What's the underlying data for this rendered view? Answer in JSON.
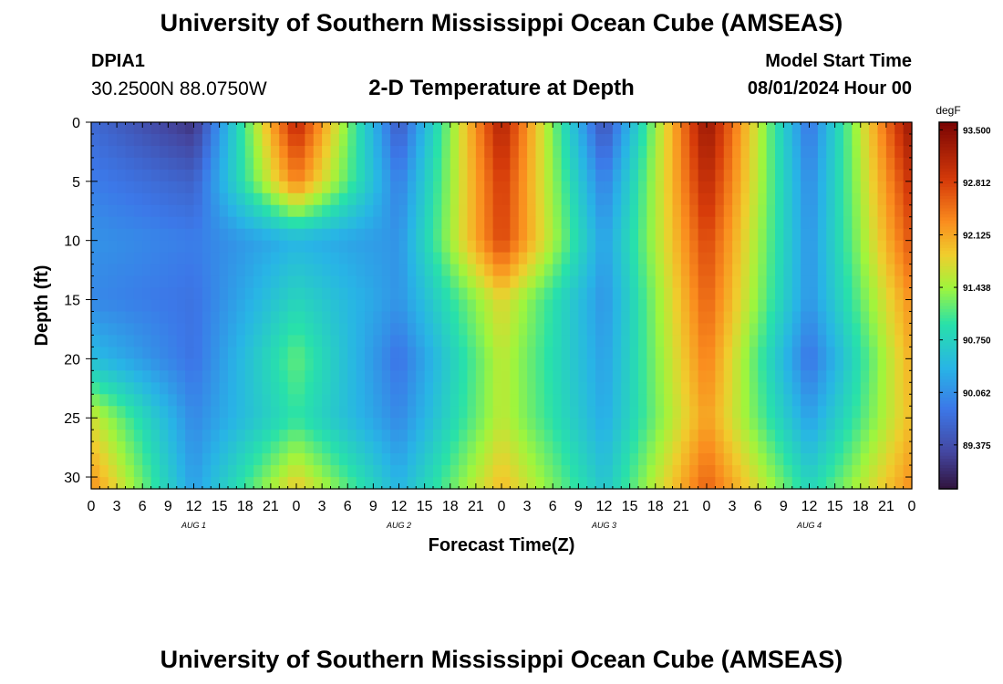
{
  "header": {
    "title": "University of Southern Mississippi Ocean Cube (AMSEAS)",
    "station_id": "DPIA1",
    "coords": "30.2500N  88.0750W",
    "subtitle": "2-D Temperature at Depth",
    "start_label": "Model Start Time",
    "start_value": "08/01/2024 Hour 00"
  },
  "footer": {
    "title": "University of Southern Mississippi Ocean Cube (AMSEAS)"
  },
  "chart_data": {
    "type": "heatmap",
    "title": "2-D Temperature at Depth",
    "xlabel": "Forecast Time(Z)",
    "ylabel": "Depth (ft)",
    "x_range_hours": [
      0,
      96
    ],
    "ylim": [
      0,
      31
    ],
    "x_tick_hours": [
      0,
      3,
      6,
      9,
      12,
      15,
      18,
      21,
      24,
      27,
      30,
      33,
      36,
      39,
      42,
      45,
      48,
      51,
      54,
      57,
      60,
      63,
      66,
      69,
      72,
      75,
      78,
      81,
      84,
      87,
      90,
      93,
      96
    ],
    "x_tick_labels": [
      "0",
      "3",
      "6",
      "9",
      "12",
      "15",
      "18",
      "21",
      "0",
      "3",
      "6",
      "9",
      "12",
      "15",
      "18",
      "21",
      "0",
      "3",
      "6",
      "9",
      "12",
      "15",
      "18",
      "21",
      "0",
      "3",
      "6",
      "9",
      "12",
      "15",
      "18",
      "21",
      "0"
    ],
    "y_ticks": [
      0,
      5,
      10,
      15,
      20,
      25,
      30
    ],
    "day_labels": [
      {
        "hour": 12,
        "text": "AUG 1"
      },
      {
        "hour": 36,
        "text": "AUG 2"
      },
      {
        "hour": 60,
        "text": "AUG 3"
      },
      {
        "hour": 84,
        "text": "AUG 4"
      }
    ],
    "colorbar": {
      "unit": "degF",
      "min": 88.8,
      "max": 93.6,
      "tick_values": [
        93.5,
        92.812,
        92.125,
        91.438,
        90.75,
        90.062,
        89.375
      ],
      "tick_labels": [
        "93.500",
        "92.812",
        "92.125",
        "91.438",
        "90.750",
        "90.062",
        "89.375"
      ]
    },
    "grid": {
      "time_hours": [
        0,
        12,
        24,
        36,
        48,
        60,
        72,
        84,
        96
      ],
      "depths_ft": [
        0,
        5,
        10,
        15,
        20,
        25,
        31
      ],
      "values_degF": [
        [
          89.7,
          89.1,
          93.1,
          89.5,
          93.2,
          89.4,
          93.4,
          89.8,
          93.4
        ],
        [
          89.9,
          89.6,
          92.4,
          89.9,
          92.9,
          89.9,
          93.1,
          90.0,
          93.0
        ],
        [
          90.1,
          89.9,
          90.4,
          90.1,
          92.8,
          90.2,
          92.8,
          90.1,
          92.7
        ],
        [
          90.0,
          89.8,
          90.8,
          90.1,
          91.8,
          90.1,
          92.6,
          90.1,
          92.3
        ],
        [
          90.5,
          89.8,
          91.2,
          89.8,
          91.6,
          90.2,
          92.4,
          89.8,
          92.1
        ],
        [
          91.7,
          90.0,
          91.0,
          90.0,
          91.6,
          90.3,
          92.2,
          90.2,
          92.0
        ],
        [
          92.3,
          90.2,
          91.9,
          90.4,
          92.0,
          90.6,
          92.6,
          90.8,
          92.3
        ]
      ]
    }
  }
}
